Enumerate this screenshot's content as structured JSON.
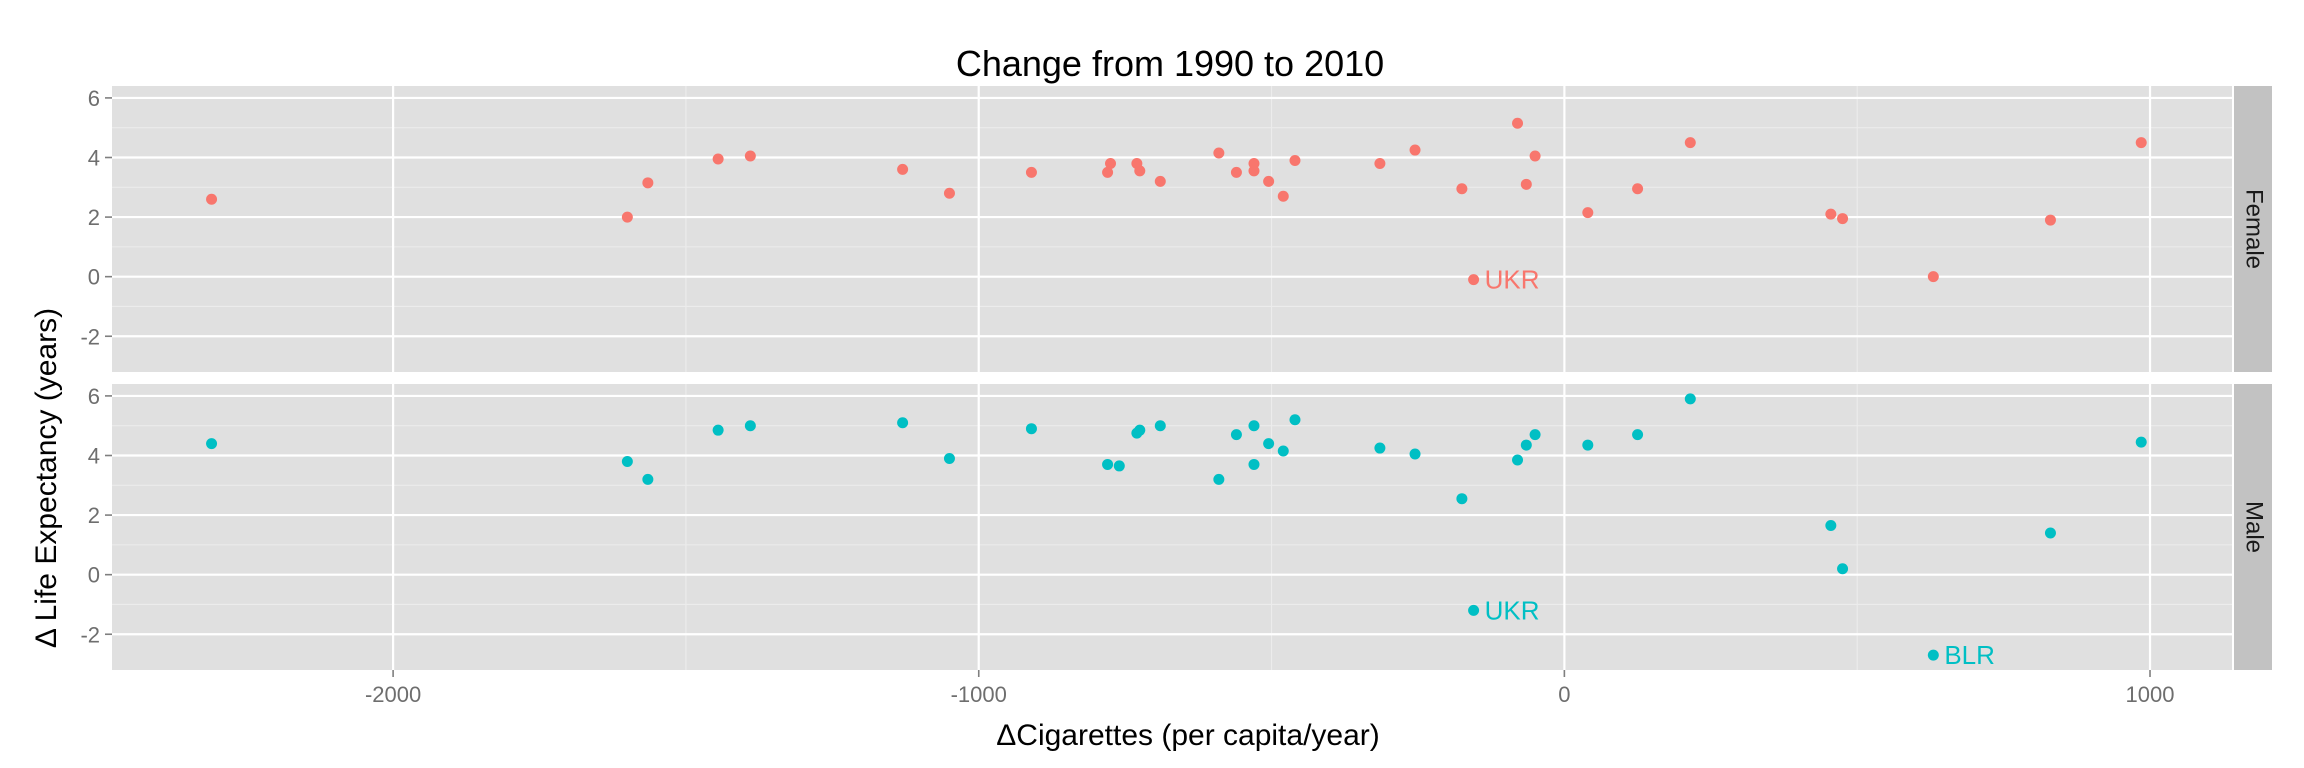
{
  "chart_data": {
    "type": "scatter",
    "title": "Change from 1990 to 2010",
    "xlabel": "ΔCigarettes (per capita/year)",
    "ylabel": "Δ Life Expectancy (years)",
    "xlim": [
      -2480,
      1140
    ],
    "ylim": [
      -3.2,
      6.4
    ],
    "x_ticks": [
      -2000,
      -1000,
      0,
      1000
    ],
    "x_tick_labels": [
      "-2000",
      "-1000",
      "0",
      "1000"
    ],
    "y_ticks": [
      -2,
      0,
      2,
      4,
      6
    ],
    "y_tick_labels": [
      "-2",
      "0",
      "2",
      "4",
      "6"
    ],
    "grid": true,
    "facets": [
      "Female",
      "Male"
    ],
    "series": [
      {
        "name": "Female",
        "color": "#F8766D",
        "points": [
          [
            -2310,
            2.6
          ],
          [
            -1600,
            2.0
          ],
          [
            -1565,
            3.15
          ],
          [
            -1445,
            3.95
          ],
          [
            -1390,
            4.05
          ],
          [
            -1130,
            3.6
          ],
          [
            -1050,
            2.8
          ],
          [
            -910,
            3.5
          ],
          [
            -780,
            3.5
          ],
          [
            -775,
            3.8
          ],
          [
            -730,
            3.8
          ],
          [
            -725,
            3.55
          ],
          [
            -690,
            3.2
          ],
          [
            -590,
            4.15
          ],
          [
            -560,
            3.5
          ],
          [
            -530,
            3.8
          ],
          [
            -530,
            3.55
          ],
          [
            -505,
            3.2
          ],
          [
            -480,
            2.7
          ],
          [
            -460,
            3.9
          ],
          [
            -315,
            3.8
          ],
          [
            -255,
            4.25
          ],
          [
            -175,
            2.95
          ],
          [
            -155,
            -0.1
          ],
          [
            -80,
            5.15
          ],
          [
            -65,
            3.1
          ],
          [
            -50,
            4.05
          ],
          [
            40,
            2.15
          ],
          [
            125,
            2.95
          ],
          [
            215,
            4.5
          ],
          [
            455,
            2.1
          ],
          [
            475,
            1.95
          ],
          [
            630,
            0.0
          ],
          [
            830,
            1.9
          ],
          [
            985,
            4.5
          ]
        ],
        "labels": [
          {
            "text": "UKR",
            "x": -155,
            "y": -0.1
          }
        ]
      },
      {
        "name": "Male",
        "color": "#00BFC4",
        "points": [
          [
            -2310,
            4.4
          ],
          [
            -1600,
            3.8
          ],
          [
            -1565,
            3.2
          ],
          [
            -1445,
            4.85
          ],
          [
            -1390,
            5.0
          ],
          [
            -1130,
            5.1
          ],
          [
            -1050,
            3.9
          ],
          [
            -910,
            4.9
          ],
          [
            -780,
            3.7
          ],
          [
            -760,
            3.65
          ],
          [
            -730,
            4.75
          ],
          [
            -725,
            4.85
          ],
          [
            -690,
            5.0
          ],
          [
            -590,
            3.2
          ],
          [
            -560,
            4.7
          ],
          [
            -530,
            5.0
          ],
          [
            -530,
            3.7
          ],
          [
            -505,
            4.4
          ],
          [
            -480,
            4.15
          ],
          [
            -460,
            5.2
          ],
          [
            -315,
            4.25
          ],
          [
            -255,
            4.05
          ],
          [
            -175,
            2.55
          ],
          [
            -155,
            -1.2
          ],
          [
            -80,
            3.85
          ],
          [
            -65,
            4.35
          ],
          [
            -50,
            4.7
          ],
          [
            40,
            4.35
          ],
          [
            125,
            4.7
          ],
          [
            215,
            5.9
          ],
          [
            455,
            1.65
          ],
          [
            475,
            0.2
          ],
          [
            630,
            -2.7
          ],
          [
            830,
            1.4
          ],
          [
            985,
            4.45
          ]
        ],
        "labels": [
          {
            "text": "UKR",
            "x": -155,
            "y": -1.2
          },
          {
            "text": "BLR",
            "x": 630,
            "y": -2.7
          }
        ]
      }
    ]
  }
}
